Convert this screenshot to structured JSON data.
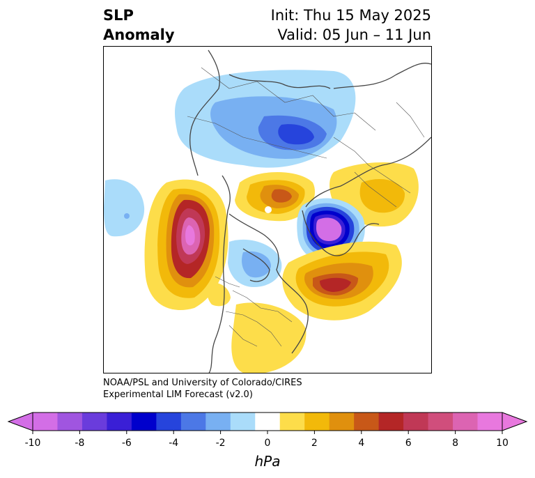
{
  "header": {
    "title_line1": "SLP",
    "title_line2": "Anomaly",
    "init_text": "Init: Thu 15 May 2025",
    "valid_text": "Valid: 05 Jun – 11 Jun"
  },
  "credit": {
    "line1": "NOAA/PSL and University of Colorado/CIRES",
    "line2": "Experimental LIM Forecast (v2.0)"
  },
  "colorbar": {
    "unit": "hPa",
    "min": -10,
    "max": 10,
    "ticks": [
      "-10",
      "-8",
      "-6",
      "-4",
      "-2",
      "0",
      "2",
      "4",
      "6",
      "8",
      "10"
    ],
    "tick_values": [
      -10,
      -8,
      -6,
      -4,
      -2,
      0,
      2,
      4,
      6,
      8,
      10
    ],
    "levels": [
      -10,
      -9,
      -8,
      -7,
      -6,
      -5,
      -4,
      -3,
      -2,
      -1,
      1,
      2,
      3,
      4,
      5,
      6,
      7,
      8,
      9,
      10
    ],
    "colors": [
      "#d36ee6",
      "#a055e0",
      "#6a3cdc",
      "#3a1fd6",
      "#0000cc",
      "#2644dc",
      "#4c78e6",
      "#78b0f2",
      "#aadcfa",
      "#ffffff",
      "#fddd4a",
      "#f2b90a",
      "#e0900e",
      "#c85818",
      "#b42626",
      "#c03856",
      "#d04e7c",
      "#dc64b2",
      "#e878de"
    ],
    "extend_low_color": "#d36ee6",
    "extend_high_color": "#e878de"
  },
  "map": {
    "projection": "polar-stereographic-north",
    "features": [
      "sea-level-pressure-anomaly-shading",
      "coastlines",
      "country-borders",
      "state-borders"
    ]
  }
}
